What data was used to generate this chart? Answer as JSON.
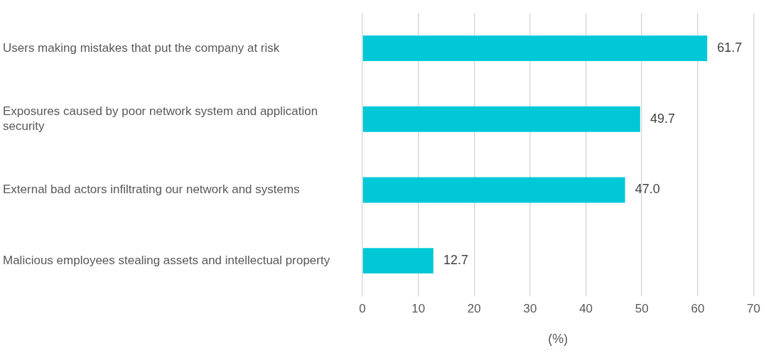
{
  "chart_data": {
    "type": "bar",
    "orientation": "horizontal",
    "xlabel": "(%)",
    "categories": [
      "Users making mistakes that put the company at risk",
      "Exposures caused by poor network system and application security",
      "External bad actors infiltrating our network and systems",
      "Malicious employees stealing assets and intellectual property"
    ],
    "values": [
      61.7,
      49.7,
      47.0,
      12.7
    ],
    "value_labels": [
      "61.7",
      "49.7",
      "47.0",
      "12.7"
    ],
    "color": "#00c8d7",
    "xlim": [
      0,
      70
    ],
    "xticks": [
      0,
      10,
      20,
      30,
      40,
      50,
      60,
      70
    ],
    "grid": "x",
    "legend": false
  }
}
